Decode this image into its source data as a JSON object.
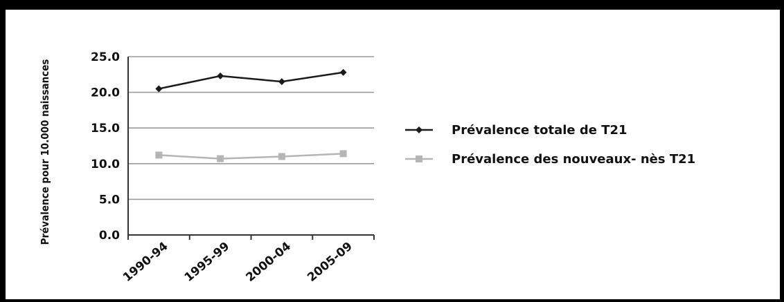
{
  "chart_data": {
    "type": "line",
    "title": "",
    "xlabel": "",
    "ylabel": "Prévalence pour 10.000 naissances",
    "categories": [
      "1990-94",
      "1995-99",
      "2000-04",
      "2005-09"
    ],
    "ylim": [
      0,
      25
    ],
    "yticks": [
      "0.0",
      "5.0",
      "10.0",
      "15.0",
      "20.0",
      "25.0"
    ],
    "grid": true,
    "legend_position": "right",
    "series": [
      {
        "name": "Prévalence totale de T21",
        "values": [
          20.5,
          22.3,
          21.5,
          22.8
        ],
        "color": "#1a1a1a",
        "marker": "diamond"
      },
      {
        "name": "Prévalence des nouveaux- nès T21",
        "values": [
          11.2,
          10.7,
          11.0,
          11.4
        ],
        "color": "#b5b5b5",
        "marker": "square"
      }
    ]
  }
}
